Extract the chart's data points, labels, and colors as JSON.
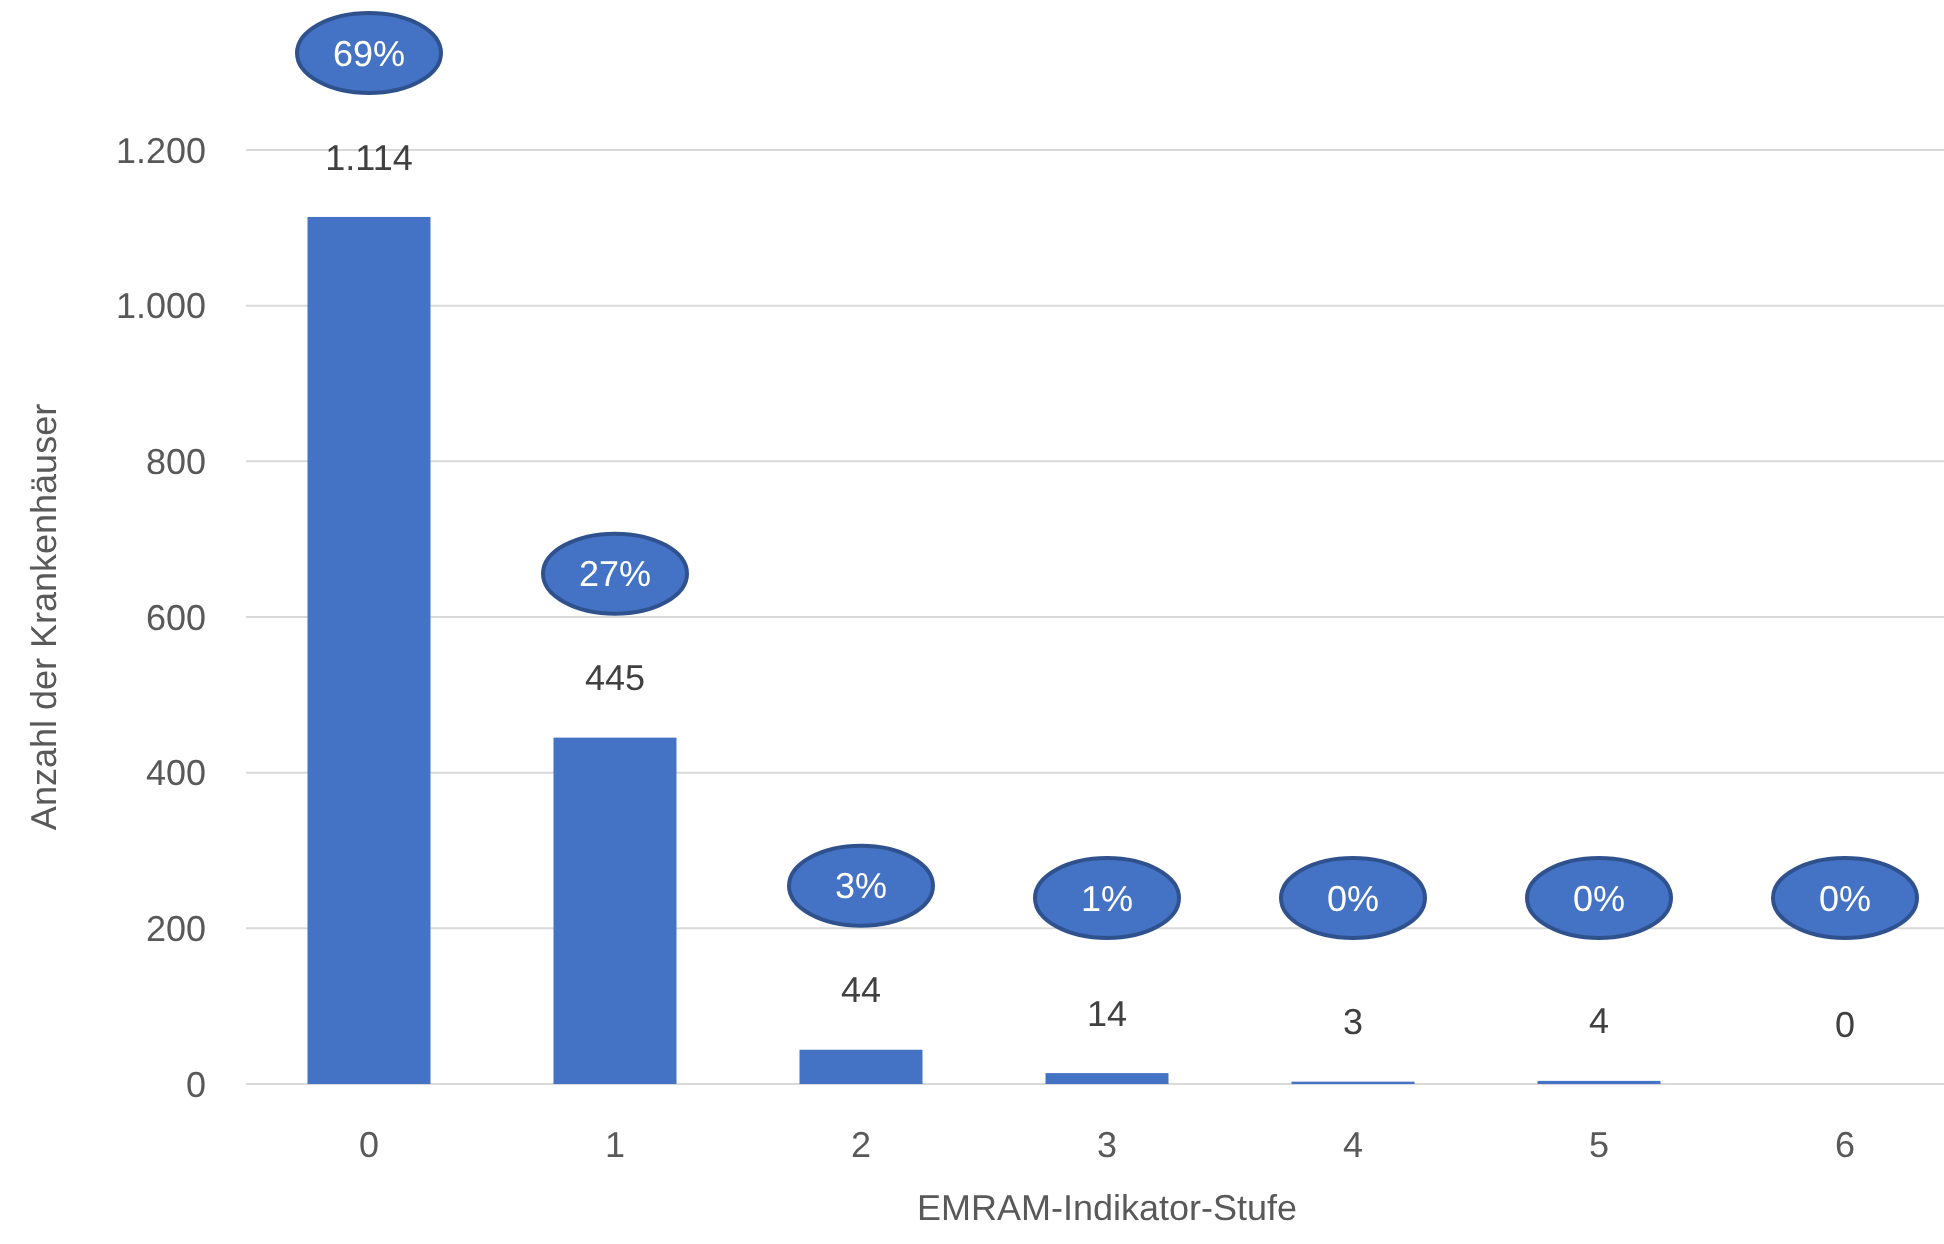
{
  "chart_data": {
    "type": "bar",
    "xlabel": "EMRAM-Indikator-Stufe",
    "ylabel": "Anzahl der Krankenhäuser",
    "categories": [
      "0",
      "1",
      "2",
      "3",
      "4",
      "5",
      "6"
    ],
    "values": [
      1114,
      445,
      44,
      14,
      3,
      4,
      0
    ],
    "value_labels": [
      "1.114",
      "445",
      "44",
      "14",
      "3",
      "4",
      "0"
    ],
    "color": "#4472c4",
    "ylim": [
      0,
      1200
    ],
    "yticks": [
      0,
      200,
      400,
      600,
      800,
      {
        "value": 1000,
        "label": "1.000"
      },
      {
        "value": 1200,
        "label": "1.200"
      }
    ],
    "grid": "y",
    "annotations": [
      "69%",
      "27%",
      "3%",
      "1%",
      "0%",
      "0%",
      "0%"
    ]
  }
}
